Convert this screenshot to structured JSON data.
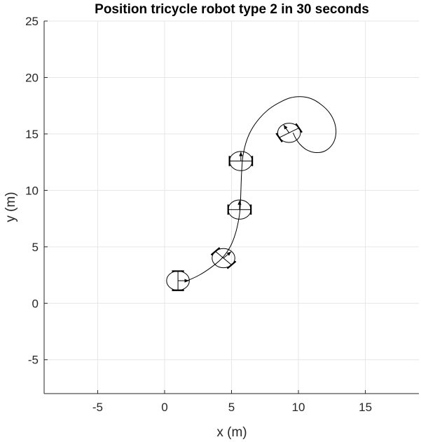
{
  "chart_data": {
    "type": "line",
    "title": "Position tricycle robot type 2 in 30 seconds",
    "xlabel": "x (m)",
    "ylabel": "y (m)",
    "xlim": [
      -9,
      19
    ],
    "ylim": [
      -8,
      25
    ],
    "xticks": [
      -5,
      0,
      5,
      10,
      15
    ],
    "yticks": [
      -5,
      0,
      5,
      10,
      15,
      20,
      25
    ],
    "grid": true,
    "line_color": "#000000",
    "grid_color": "#e6e6e6",
    "series": [
      {
        "x": [
          1.7,
          2.6,
          3.5,
          4.3,
          4.9,
          5.3,
          5.55,
          5.65,
          5.7,
          5.75,
          5.85,
          6.1,
          6.5,
          7.1,
          7.8,
          8.6,
          9.4,
          10.2,
          11.0,
          11.7,
          12.3,
          12.7,
          12.8,
          12.55,
          12.0,
          11.3,
          10.6,
          10.1,
          9.8,
          9.6
        ],
        "y": [
          2.0,
          2.5,
          3.2,
          4.0,
          5.0,
          6.2,
          7.5,
          8.5,
          10.0,
          11.5,
          13.0,
          14.3,
          15.4,
          16.4,
          17.2,
          17.8,
          18.2,
          18.3,
          18.1,
          17.6,
          16.9,
          16.0,
          15.0,
          14.1,
          13.5,
          13.35,
          13.6,
          14.1,
          14.6,
          15.1
        ]
      }
    ],
    "robot_poses": [
      {
        "x": 1.0,
        "y": 2.0,
        "heading_deg": 0
      },
      {
        "x": 4.4,
        "y": 4.0,
        "heading_deg": 45
      },
      {
        "x": 5.6,
        "y": 8.3,
        "heading_deg": 90
      },
      {
        "x": 5.7,
        "y": 12.6,
        "heading_deg": 90
      },
      {
        "x": 9.3,
        "y": 15.1,
        "heading_deg": 120
      }
    ]
  }
}
